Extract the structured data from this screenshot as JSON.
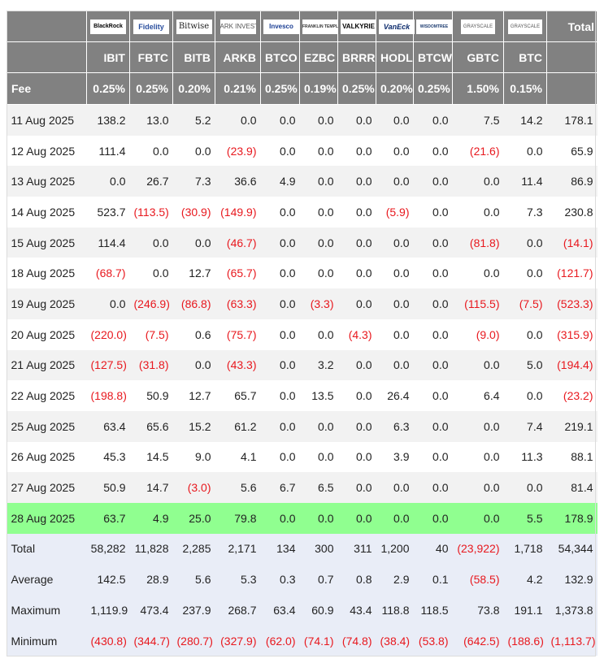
{
  "chart_data": {
    "type": "table",
    "title": "",
    "issuers": [
      "BlackRock",
      "Fidelity",
      "Bitwise",
      "ARK INVEST",
      "Invesco",
      "FRANKLIN TEMPLETON",
      "VALKYRIE",
      "VanEck",
      "WISDOMTREE",
      "GRAYSCALE",
      "GRAYSCALE"
    ],
    "total_header": "Total",
    "tickers": [
      "IBIT",
      "FBTC",
      "BITB",
      "ARKB",
      "BTCO",
      "EZBC",
      "BRRR",
      "HODL",
      "BTCW",
      "GBTC",
      "BTC"
    ],
    "fee_label": "Fee",
    "fees": [
      "0.25%",
      "0.25%",
      "0.20%",
      "0.21%",
      "0.25%",
      "0.19%",
      "0.25%",
      "0.20%",
      "0.25%",
      "1.50%",
      "0.15%"
    ],
    "rows": [
      {
        "date": "11 Aug 2025",
        "values": [
          138.2,
          13.0,
          5.2,
          0.0,
          0.0,
          0.0,
          0.0,
          0.0,
          0.0,
          7.5,
          14.2
        ],
        "total": 178.1
      },
      {
        "date": "12 Aug 2025",
        "values": [
          111.4,
          0.0,
          0.0,
          -23.9,
          0.0,
          0.0,
          0.0,
          0.0,
          0.0,
          -21.6,
          0.0
        ],
        "total": 65.9
      },
      {
        "date": "13 Aug 2025",
        "values": [
          0.0,
          26.7,
          7.3,
          36.6,
          4.9,
          0.0,
          0.0,
          0.0,
          0.0,
          0.0,
          11.4
        ],
        "total": 86.9
      },
      {
        "date": "14 Aug 2025",
        "values": [
          523.7,
          -113.5,
          -30.9,
          -149.9,
          0.0,
          0.0,
          0.0,
          -5.9,
          0.0,
          0.0,
          7.3
        ],
        "total": 230.8
      },
      {
        "date": "15 Aug 2025",
        "values": [
          114.4,
          0.0,
          0.0,
          -46.7,
          0.0,
          0.0,
          0.0,
          0.0,
          0.0,
          -81.8,
          0.0
        ],
        "total": -14.1
      },
      {
        "date": "18 Aug 2025",
        "values": [
          -68.7,
          0.0,
          12.7,
          -65.7,
          0.0,
          0.0,
          0.0,
          0.0,
          0.0,
          0.0,
          0.0
        ],
        "total": -121.7
      },
      {
        "date": "19 Aug 2025",
        "values": [
          0.0,
          -246.9,
          -86.8,
          -63.3,
          0.0,
          -3.3,
          0.0,
          0.0,
          0.0,
          -115.5,
          -7.5
        ],
        "total": -523.3
      },
      {
        "date": "20 Aug 2025",
        "values": [
          -220.0,
          -7.5,
          0.6,
          -75.7,
          0.0,
          0.0,
          -4.3,
          0.0,
          0.0,
          -9.0,
          0.0
        ],
        "total": -315.9
      },
      {
        "date": "21 Aug 2025",
        "values": [
          -127.5,
          -31.8,
          0.0,
          -43.3,
          0.0,
          3.2,
          0.0,
          0.0,
          0.0,
          0.0,
          5.0
        ],
        "total": -194.4
      },
      {
        "date": "22 Aug 2025",
        "values": [
          -198.8,
          50.9,
          12.7,
          65.7,
          0.0,
          13.5,
          0.0,
          26.4,
          0.0,
          6.4,
          0.0
        ],
        "total": -23.2
      },
      {
        "date": "25 Aug 2025",
        "values": [
          63.4,
          65.6,
          15.2,
          61.2,
          0.0,
          0.0,
          0.0,
          6.3,
          0.0,
          0.0,
          7.4
        ],
        "total": 219.1
      },
      {
        "date": "26 Aug 2025",
        "values": [
          45.3,
          14.5,
          9.0,
          4.1,
          0.0,
          0.0,
          0.0,
          3.9,
          0.0,
          0.0,
          11.3
        ],
        "total": 88.1
      },
      {
        "date": "27 Aug 2025",
        "values": [
          50.9,
          14.7,
          -3.0,
          5.6,
          6.7,
          6.5,
          0.0,
          0.0,
          0.0,
          0.0,
          0.0
        ],
        "total": 81.4
      },
      {
        "date": "28 Aug 2025",
        "values": [
          63.7,
          4.9,
          25.0,
          79.8,
          0.0,
          0.0,
          0.0,
          0.0,
          0.0,
          0.0,
          5.5
        ],
        "total": 178.9,
        "highlight": true
      }
    ],
    "summary": [
      {
        "label": "Total",
        "values": [
          "58,282",
          "11,828",
          "2,285",
          "2,171",
          "134",
          "300",
          "311",
          "1,200",
          "40",
          "(23,922)",
          "1,718"
        ],
        "total": "54,344"
      },
      {
        "label": "Average",
        "values": [
          "142.5",
          "28.9",
          "5.6",
          "5.3",
          "0.3",
          "0.7",
          "0.8",
          "2.9",
          "0.1",
          "(58.5)",
          "4.2"
        ],
        "total": "132.9"
      },
      {
        "label": "Maximum",
        "values": [
          "1,119.9",
          "473.4",
          "237.9",
          "268.7",
          "63.4",
          "60.9",
          "43.4",
          "118.8",
          "118.5",
          "73.8",
          "191.1"
        ],
        "total": "1,373.8"
      },
      {
        "label": "Minimum",
        "values": [
          "(430.8)",
          "(344.7)",
          "(280.7)",
          "(327.9)",
          "(62.0)",
          "(74.1)",
          "(74.8)",
          "(38.4)",
          "(53.8)",
          "(642.5)",
          "(188.6)"
        ],
        "total": "(1,113.7)"
      }
    ],
    "colors": {
      "header_bg": "#818181",
      "negative": "#e8181e",
      "highlight_row": "#90ff90",
      "summary_bg": "#e9edf7",
      "stripe": "#f2f2f2"
    }
  }
}
